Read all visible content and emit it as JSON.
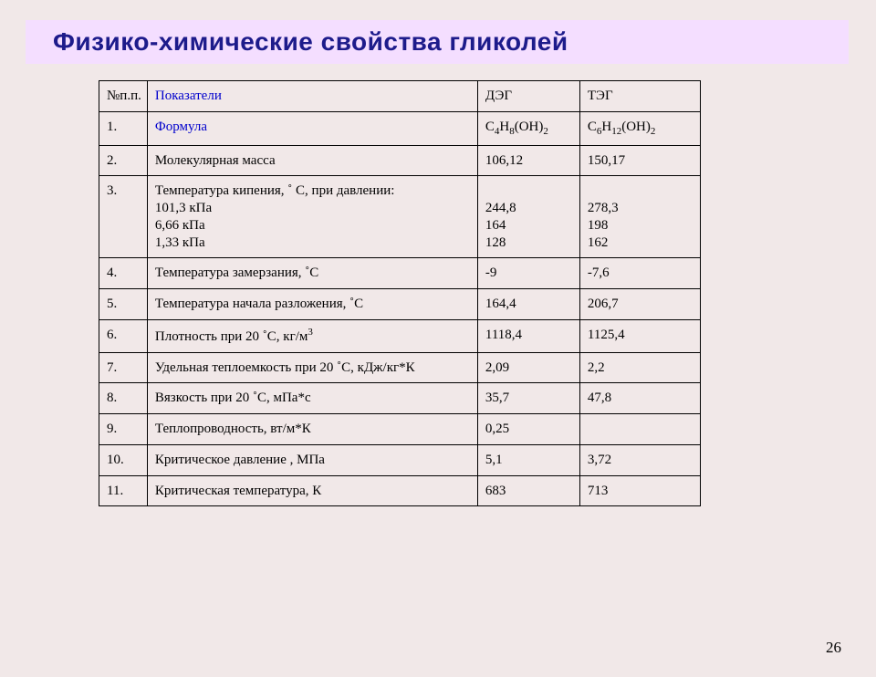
{
  "title": "Физико-химические свойства гликолей",
  "title_bg": "#f4deff",
  "title_color": "#1d1b8b",
  "bg_color": "#f1e8e8",
  "border_color": "#000000",
  "columns": {
    "num": "№п.п.",
    "param": "Показатели",
    "deg": "ДЭГ",
    "teg": "ТЭГ"
  },
  "col_widths": {
    "num": 48,
    "param": 362,
    "deg": 112,
    "teg": 132
  },
  "font_sizes": {
    "title": 28,
    "cell": 15,
    "sub": 11,
    "page_num": 17
  },
  "rows": [
    {
      "n": "1.",
      "param_html": "Формула",
      "param_link": true,
      "deg_html": "C<span class='sub'>4</span>H<span class='sub'>8</span>(OH)<span class='sub'>2</span>",
      "teg_html": "C<span class='sub'>6</span>H<span class='sub'>12</span>(OH)<span class='sub'>2</span>"
    },
    {
      "n": "2.",
      "param_html": "Молекулярная масса",
      "deg_html": "106,12",
      "teg_html": "150,17"
    },
    {
      "n": "3.",
      "param_html": "Температура кипения, ˚ C, при давлении:\n101,3 кПа\n6,66 кПа\n1,33 кПа",
      "param_multi": true,
      "deg_html": "\n244,8\n164\n128",
      "deg_multi": true,
      "teg_html": "\n278,3\n198\n162",
      "teg_multi": true
    },
    {
      "n": "4.",
      "param_html": "Температура замерзания, ˚C",
      "deg_html": "-9",
      "teg_html": "-7,6"
    },
    {
      "n": "5.",
      "param_html": "Температура начала разложения, ˚C",
      "deg_html": "164,4",
      "teg_html": "206,7"
    },
    {
      "n": "6.",
      "param_html": "Плотность при 20 ˚C, кг/м<span class='sup'>3</span>",
      "deg_html": "1118,4",
      "teg_html": "1125,4"
    },
    {
      "n": "7.",
      "param_html": "Удельная теплоемкость при 20 ˚C, кДж/кг*К",
      "deg_html": "2,09",
      "teg_html": "2,2"
    },
    {
      "n": "8.",
      "param_html": "Вязкость при 20 ˚C, мПа*с",
      "deg_html": "35,7",
      "teg_html": "47,8"
    },
    {
      "n": "9.",
      "param_html": "Теплопроводность, вт/м*К",
      "deg_html": "0,25",
      "teg_html": ""
    },
    {
      "n": "10.",
      "param_html": "Критическое давление , МПа",
      "deg_html": "5,1",
      "teg_html": "3,72"
    },
    {
      "n": "11.",
      "param_html": "Критическая температура, К",
      "deg_html": "683",
      "teg_html": "713"
    }
  ],
  "page_number": "26"
}
